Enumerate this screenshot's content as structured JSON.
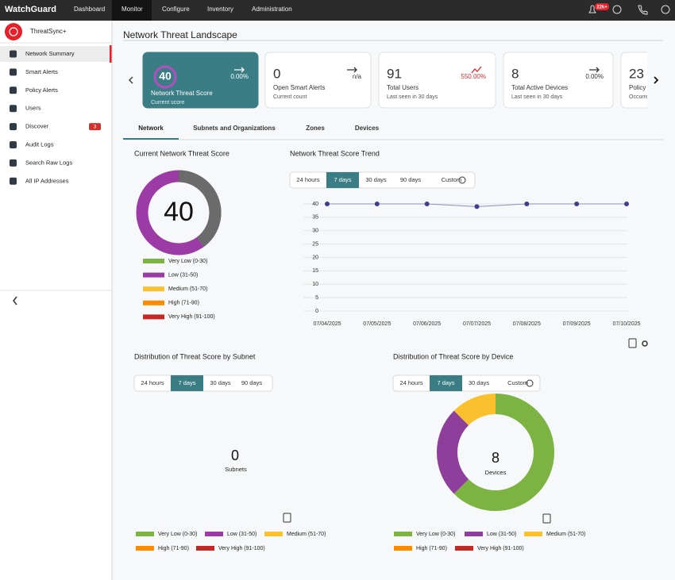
{
  "nav": {
    "brand": "WatchGuard",
    "tabs": [
      "Dashboard",
      "Monitor",
      "Configure",
      "Inventory",
      "Administration"
    ],
    "notification_badge": "22k+"
  },
  "sidebar": {
    "product": "ThreatSync+",
    "items": [
      {
        "label": "Network Summary"
      },
      {
        "label": "Smart Alerts"
      },
      {
        "label": "Policy Alerts"
      },
      {
        "label": "Users"
      },
      {
        "label": "Discover",
        "badge": "3"
      },
      {
        "label": "Audit Logs"
      },
      {
        "label": "Search Raw Logs"
      },
      {
        "label": "All IP Addresses"
      }
    ]
  },
  "page_title": "Network Threat Landscape",
  "cards": [
    {
      "value": "40",
      "label": "Network Threat Score",
      "sub": "Current score",
      "change": "0.00%"
    },
    {
      "value": "0",
      "label": "Open Smart Alerts",
      "sub": "Current count",
      "change": "n/a"
    },
    {
      "value": "91",
      "label": "Total Users",
      "sub": "Last seen in 30 days",
      "change": "550.00%"
    },
    {
      "value": "8",
      "label": "Total Active Devices",
      "sub": "Last seen in 30 days",
      "change": "0.00%"
    },
    {
      "value": "23",
      "label": "Policy",
      "sub": "Occurre"
    }
  ],
  "tabs": [
    "Network",
    "Subnets and Organizations",
    "Zones",
    "Devices"
  ],
  "legend": [
    {
      "label": "Very Low (0-30)",
      "color": "#7cb342"
    },
    {
      "label": "Low (31-50)",
      "color": "#9c3ba6"
    },
    {
      "label": "Medium (51-70)",
      "color": "#fbc02d"
    },
    {
      "label": "High (71-90)",
      "color": "#fb8c00"
    },
    {
      "label": "Very High (91-100)",
      "color": "#c62828"
    }
  ],
  "trend_ranges": [
    "24 hours",
    "7 days",
    "30 days",
    "90 days",
    "Custom"
  ],
  "subnet_panel": {
    "title": "Distribution of Threat Score by Subnet",
    "ranges": [
      "24 hours",
      "7 days",
      "30 days",
      "90 days"
    ],
    "count": "0",
    "count_label": "Subnets"
  },
  "device_panel": {
    "title": "Distribution of Threat Score by Device",
    "ranges": [
      "24 hours",
      "7 days",
      "30 days",
      "Custom"
    ]
  },
  "chart_data": [
    {
      "type": "gauge",
      "title": "Current Network Threat Score",
      "value": 40,
      "ylim": [
        0,
        100
      ],
      "color": "#6b6b6b",
      "rest_color": "#9c3ba6"
    },
    {
      "type": "line",
      "title": "Network Threat Score Trend",
      "categories": [
        "07/04/2025",
        "07/05/2025",
        "07/06/2025",
        "07/07/2025",
        "07/08/2025",
        "07/09/2025",
        "07/10/2025"
      ],
      "values": [
        40,
        40,
        40,
        39,
        40,
        40,
        40
      ],
      "color": "#3f3d8f",
      "ylim": [
        0,
        40
      ],
      "yticks": [
        0,
        5,
        10,
        15,
        20,
        25,
        30,
        35,
        40
      ],
      "grid": true
    },
    {
      "type": "pie",
      "categories": [
        "Very Low (0-30)",
        "Low (31-50)",
        "Medium (51-70)",
        "High (71-90)",
        "Very High (91-100)"
      ],
      "values": [
        5,
        2,
        1,
        0,
        0
      ],
      "colors": [
        "#7cb342",
        "#8e3f9c",
        "#fbc02d",
        "#fb8c00",
        "#c62828"
      ],
      "center_value": 8,
      "center_label": "Devices"
    }
  ]
}
